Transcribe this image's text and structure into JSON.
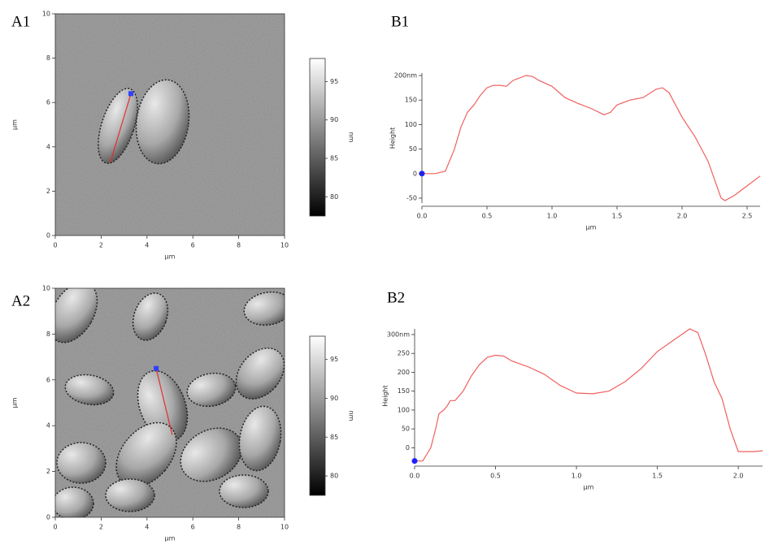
{
  "chart_data": [
    {
      "type": "image",
      "panel": "A1",
      "xlabel": "µm",
      "ylabel": "µm",
      "xlim": [
        0,
        10
      ],
      "ylim": [
        0,
        10
      ],
      "xticks": [
        0,
        2,
        4,
        6,
        8,
        10
      ],
      "yticks": [
        0,
        2,
        4,
        6,
        8,
        10
      ],
      "colorbar": {
        "label": "nm",
        "lim": [
          77.5,
          98
        ],
        "ticks": [
          80,
          85,
          90,
          95
        ]
      },
      "profile": {
        "x": [
          2.4,
          3.3
        ],
        "y": [
          3.3,
          6.4
        ],
        "color": "#e03030"
      }
    },
    {
      "type": "line",
      "panel": "B1",
      "xlabel": "µm",
      "ylabel": "Height",
      "x": [
        0,
        0.1,
        0.18,
        0.25,
        0.3,
        0.35,
        0.4,
        0.45,
        0.5,
        0.55,
        0.6,
        0.65,
        0.7,
        0.75,
        0.8,
        0.85,
        0.9,
        1.0,
        1.1,
        1.2,
        1.3,
        1.4,
        1.45,
        1.5,
        1.6,
        1.7,
        1.8,
        1.85,
        1.9,
        2.0,
        2.1,
        2.2,
        2.3,
        2.33,
        2.4,
        2.5,
        2.6
      ],
      "y": [
        0,
        0,
        5,
        50,
        95,
        125,
        140,
        160,
        175,
        180,
        180,
        178,
        190,
        195,
        200,
        198,
        190,
        178,
        155,
        143,
        133,
        120,
        125,
        140,
        150,
        155,
        172,
        175,
        165,
        115,
        75,
        25,
        -50,
        -55,
        -45,
        -25,
        -5
      ],
      "color": "#f06060",
      "marker": {
        "x": 0,
        "y": 0,
        "color": "#2020ff"
      },
      "xlim": [
        0,
        2.6
      ],
      "ylim": [
        -60,
        205
      ],
      "xticks": [
        {
          "value": 0,
          "label": "0.0"
        },
        0.5,
        {
          "value": 1,
          "label": "1.0"
        },
        1.5,
        {
          "value": 2,
          "label": "2.0"
        },
        2.5
      ],
      "yticks": [
        -50,
        0,
        50,
        100,
        150,
        {
          "value": 200,
          "label": "200nm"
        }
      ]
    },
    {
      "type": "image",
      "panel": "A2",
      "xlabel": "µm",
      "ylabel": "µm",
      "xlim": [
        0,
        10
      ],
      "ylim": [
        0,
        10
      ],
      "xticks": [
        0,
        2,
        4,
        6,
        8,
        10
      ],
      "yticks": [
        0,
        2,
        4,
        6,
        8,
        10
      ],
      "colorbar": {
        "label": "nm",
        "lim": [
          77.5,
          98
        ],
        "ticks": [
          80,
          85,
          90,
          95
        ]
      },
      "profile": {
        "x": [
          4.4,
          5.1
        ],
        "y": [
          6.5,
          3.6
        ],
        "color": "#e03030"
      }
    },
    {
      "type": "line",
      "panel": "B2",
      "xlabel": "µm",
      "ylabel": "Height",
      "x": [
        0,
        0.05,
        0.1,
        0.13,
        0.15,
        0.18,
        0.2,
        0.22,
        0.25,
        0.3,
        0.35,
        0.4,
        0.45,
        0.5,
        0.55,
        0.6,
        0.7,
        0.8,
        0.9,
        1.0,
        1.1,
        1.2,
        1.3,
        1.4,
        1.5,
        1.6,
        1.65,
        1.7,
        1.75,
        1.8,
        1.85,
        1.9,
        1.95,
        2.0,
        2.1,
        2.15
      ],
      "y": [
        -35,
        -35,
        0,
        50,
        90,
        100,
        110,
        125,
        125,
        150,
        190,
        220,
        240,
        245,
        243,
        230,
        215,
        195,
        165,
        145,
        143,
        150,
        175,
        210,
        255,
        285,
        300,
        315,
        305,
        245,
        175,
        130,
        50,
        -10,
        -10,
        -8
      ],
      "color": "#f06060",
      "marker": {
        "x": 0,
        "y": -35,
        "color": "#2020ff"
      },
      "xlim": [
        0,
        2.15
      ],
      "ylim": [
        -40,
        315
      ],
      "xticks": [
        {
          "value": 0,
          "label": "0.0"
        },
        0.5,
        {
          "value": 1,
          "label": "1.0"
        },
        1.5,
        {
          "value": 2,
          "label": "2.0"
        }
      ],
      "yticks": [
        0,
        50,
        100,
        150,
        200,
        250,
        {
          "value": 300,
          "label": "300nm"
        }
      ]
    }
  ]
}
